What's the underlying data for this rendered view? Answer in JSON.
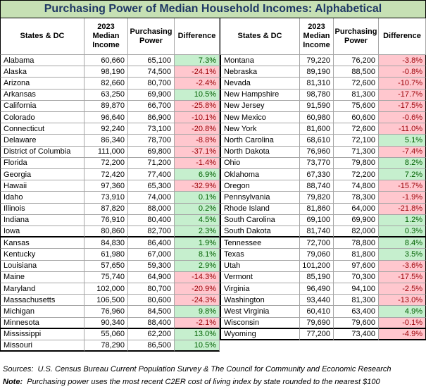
{
  "title": "Purchasing Power of Median Household Incomes: Alphabetical",
  "header": [
    "States & DC",
    "2023 Median Income",
    "Purchasing Power",
    "Difference"
  ],
  "left_rows": [
    [
      "Alabama",
      "60,660",
      "65,100",
      "7.3%"
    ],
    [
      "Alaska",
      "98,190",
      "74,500",
      "-24.1%"
    ],
    [
      "Arizona",
      "82,660",
      "80,700",
      "-2.4%"
    ],
    [
      "Arkansas",
      "63,250",
      "69,900",
      "10.5%"
    ],
    [
      "California",
      "89,870",
      "66,700",
      "-25.8%"
    ],
    [
      "Colorado",
      "96,640",
      "86,900",
      "-10.1%"
    ],
    [
      "Connecticut",
      "92,240",
      "73,100",
      "-20.8%"
    ],
    [
      "Delaware",
      "86,340",
      "78,700",
      "-8.8%"
    ],
    [
      "District of Columbia",
      "111,000",
      "69,800",
      "-37.1%"
    ],
    [
      "Florida",
      "72,200",
      "71,200",
      "-1.4%"
    ],
    [
      "Georgia",
      "72,420",
      "77,400",
      "6.9%"
    ],
    [
      "Hawaii",
      "97,360",
      "65,300",
      "-32.9%"
    ],
    [
      "Idaho",
      "73,910",
      "74,000",
      "0.1%"
    ],
    [
      "Illinois",
      "87,820",
      "88,000",
      "0.2%"
    ],
    [
      "Indiana",
      "76,910",
      "80,400",
      "4.5%"
    ],
    [
      "Iowa",
      "80,860",
      "82,700",
      "2.3%"
    ],
    [
      "Kansas",
      "84,830",
      "86,400",
      "1.9%"
    ],
    [
      "Kentucky",
      "61,980",
      "67,000",
      "8.1%"
    ],
    [
      "Louisiana",
      "57,650",
      "59,300",
      "2.9%"
    ],
    [
      "Maine",
      "75,740",
      "64,900",
      "-14.3%"
    ],
    [
      "Maryland",
      "102,000",
      "80,700",
      "-20.9%"
    ],
    [
      "Massachusetts",
      "106,500",
      "80,600",
      "-24.3%"
    ],
    [
      "Michigan",
      "76,960",
      "84,500",
      "9.8%"
    ],
    [
      "Minnesota",
      "90,340",
      "88,400",
      "-2.1%"
    ],
    [
      "Mississippi",
      "55,060",
      "62,200",
      "13.0%"
    ],
    [
      "Missouri",
      "78,290",
      "86,500",
      "10.5%"
    ]
  ],
  "right_rows": [
    [
      "Montana",
      "79,220",
      "76,200",
      "-3.8%"
    ],
    [
      "Nebraska",
      "89,190",
      "88,500",
      "-0.8%"
    ],
    [
      "Nevada",
      "81,310",
      "72,600",
      "-10.7%"
    ],
    [
      "New Hampshire",
      "98,780",
      "81,300",
      "-17.7%"
    ],
    [
      "New Jersey",
      "91,590",
      "75,600",
      "-17.5%"
    ],
    [
      "New Mexico",
      "60,980",
      "60,600",
      "-0.6%"
    ],
    [
      "New York",
      "81,600",
      "72,600",
      "-11.0%"
    ],
    [
      "North Carolina",
      "68,610",
      "72,100",
      "5.1%"
    ],
    [
      "North Dakota",
      "76,960",
      "71,300",
      "-7.4%"
    ],
    [
      "Ohio",
      "73,770",
      "79,800",
      "8.2%"
    ],
    [
      "Oklahoma",
      "67,330",
      "72,200",
      "7.2%"
    ],
    [
      "Oregon",
      "88,740",
      "74,800",
      "-15.7%"
    ],
    [
      "Pennsylvania",
      "79,820",
      "78,300",
      "-1.9%"
    ],
    [
      "Rhode Island",
      "81,860",
      "64,000",
      "-21.8%"
    ],
    [
      "South Carolina",
      "69,100",
      "69,900",
      "1.2%"
    ],
    [
      "South Dakota",
      "81,740",
      "82,000",
      "0.3%"
    ],
    [
      "Tennessee",
      "72,700",
      "78,800",
      "8.4%"
    ],
    [
      "Texas",
      "79,060",
      "81,800",
      "3.5%"
    ],
    [
      "Utah",
      "101,200",
      "97,600",
      "-3.6%"
    ],
    [
      "Vermont",
      "85,190",
      "70,300",
      "-17.5%"
    ],
    [
      "Virginia",
      "96,490",
      "94,100",
      "-2.5%"
    ],
    [
      "Washington",
      "93,440",
      "81,300",
      "-13.0%"
    ],
    [
      "West Virginia",
      "60,410",
      "63,400",
      "4.9%"
    ],
    [
      "Wisconsin",
      "79,690",
      "79,600",
      "-0.1%"
    ],
    [
      "Wyoming",
      "77,200",
      "73,400",
      "-4.9%"
    ]
  ],
  "sources_label": "Sources:",
  "sources": "U.S. Census Bureau Current Population Survey & The Council for Community and Economic Research",
  "note_label": "Note:",
  "note": "Purchasing power uses the most recent C2ER cost of living index by state rounded to the nearest $100"
}
